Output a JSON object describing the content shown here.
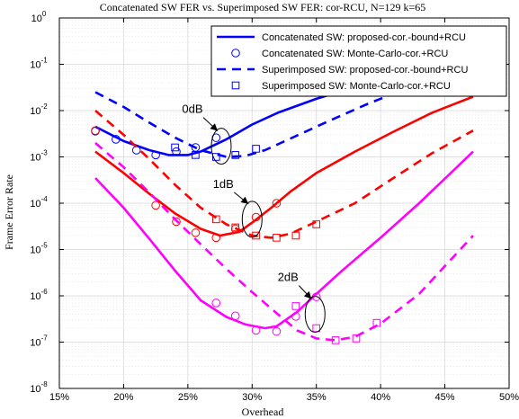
{
  "chart_data": {
    "type": "line",
    "title": "Concatenated SW FER vs. Superimposed SW FER: cor-RCU, N=129 k=65",
    "xlabel": "Overhead",
    "ylabel": "Frame Error Rate",
    "xlim": [
      15,
      50
    ],
    "ylim": [
      1e-08,
      1
    ],
    "yscale": "log",
    "grid": true,
    "x_ticks": [
      15,
      20,
      25,
      30,
      35,
      40,
      45,
      50
    ],
    "x_tick_labels": [
      "15%",
      "20%",
      "25%",
      "30%",
      "35%",
      "40%",
      "45%",
      "50%"
    ],
    "y_ticks": [
      1e-08,
      1e-07,
      1e-06,
      1e-05,
      0.0001,
      0.001,
      0.01,
      0.1,
      1
    ],
    "y_tick_labels": [
      {
        "base": "10",
        "exp": "-8"
      },
      {
        "base": "10",
        "exp": "-7"
      },
      {
        "base": "10",
        "exp": "-6"
      },
      {
        "base": "10",
        "exp": "-5"
      },
      {
        "base": "10",
        "exp": "-4"
      },
      {
        "base": "10",
        "exp": "-3"
      },
      {
        "base": "10",
        "exp": "-2"
      },
      {
        "base": "10",
        "exp": "-1"
      },
      {
        "base": "10",
        "exp": "0"
      }
    ],
    "legend_position": "top-right",
    "legend": [
      {
        "label": "Concatenated SW: proposed-cor.-bound+RCU",
        "style": "solid",
        "marker": "none",
        "color": "#0000ff"
      },
      {
        "label": "Concatenated SW: Monte-Carlo-cor.+RCU",
        "style": "none",
        "marker": "circle",
        "color": "#0000ff"
      },
      {
        "label": "Superimposed SW: proposed-cor.-bound+RCU",
        "style": "dashed",
        "marker": "none",
        "color": "#0000ff"
      },
      {
        "label": "Superimposed SW: Monte-Carlo-cor.+RCU",
        "style": "none",
        "marker": "square",
        "color": "#0000ff"
      }
    ],
    "series": [
      {
        "snr": "0dB",
        "kind": "concat-bound",
        "color": "#0000ff",
        "style": "solid",
        "marker": "none",
        "x": [
          17.8,
          20,
          22,
          23.5,
          25,
          26,
          28,
          30,
          32,
          35,
          38,
          41,
          44,
          47.2
        ],
        "y": [
          0.0045,
          0.0022,
          0.0014,
          0.0011,
          0.0011,
          0.0013,
          0.0024,
          0.005,
          0.009,
          0.018,
          0.032,
          0.05,
          0.075,
          0.1
        ]
      },
      {
        "snr": "0dB",
        "kind": "concat-mc",
        "color": "#0000ff",
        "style": "none",
        "marker": "circle",
        "x": [
          17.8,
          19.4,
          21,
          22.5,
          24.1,
          25.6,
          27.2
        ],
        "y": [
          0.0036,
          0.0024,
          0.0014,
          0.0011,
          0.0013,
          0.0016,
          0.0026
        ]
      },
      {
        "snr": "0dB",
        "kind": "super-bound",
        "color": "#0000ff",
        "style": "dashed",
        "marker": "none",
        "x": [
          17.8,
          20,
          22,
          24,
          26,
          28,
          29.5,
          31,
          33,
          36,
          39,
          42,
          45,
          47.2
        ],
        "y": [
          0.025,
          0.012,
          0.0055,
          0.0026,
          0.0014,
          0.001,
          0.00105,
          0.0014,
          0.0025,
          0.006,
          0.014,
          0.03,
          0.055,
          0.08
        ]
      },
      {
        "snr": "0dB",
        "kind": "super-mc",
        "color": "#0000ff",
        "style": "none",
        "marker": "square",
        "x": [
          24,
          25.6,
          27.2,
          28.7,
          30.3
        ],
        "y": [
          0.0016,
          0.0011,
          0.001,
          0.0011,
          0.0015
        ]
      },
      {
        "snr": "1dB",
        "kind": "concat-bound",
        "color": "#ff0000",
        "style": "solid",
        "marker": "none",
        "x": [
          17.8,
          20,
          22,
          24,
          26,
          27.5,
          29,
          30,
          31.5,
          33,
          35,
          38,
          41,
          44,
          47.2
        ],
        "y": [
          0.0013,
          0.00045,
          0.00016,
          6e-05,
          2.8e-05,
          2e-05,
          2.4e-05,
          3.8e-05,
          8e-05,
          0.00018,
          0.00045,
          0.0013,
          0.0035,
          0.009,
          0.02
        ]
      },
      {
        "snr": "1dB",
        "kind": "concat-mc",
        "color": "#ff0000",
        "style": "none",
        "marker": "circle",
        "x": [
          17.8,
          22.5,
          24.1,
          25.6,
          27.2,
          28.7,
          30.3,
          31.9
        ],
        "y": [
          0.0037,
          9e-05,
          4e-05,
          2.3e-05,
          1.8e-05,
          2.8e-05,
          5e-05,
          0.0001
        ]
      },
      {
        "snr": "1dB",
        "kind": "super-bound",
        "color": "#ff0000",
        "style": "dashed",
        "marker": "none",
        "x": [
          17.8,
          20,
          22,
          24,
          26,
          28,
          30,
          31.5,
          33,
          35,
          38,
          41,
          44,
          47.2
        ],
        "y": [
          0.01,
          0.003,
          0.0009,
          0.00025,
          8e-05,
          3.5e-05,
          2e-05,
          1.8e-05,
          2.2e-05,
          4e-05,
          0.0001,
          0.00035,
          0.0012,
          0.0037
        ]
      },
      {
        "snr": "1dB",
        "kind": "super-mc",
        "color": "#ff0000",
        "style": "none",
        "marker": "square",
        "x": [
          27.2,
          28.7,
          30.3,
          31.9,
          33.4,
          35
        ],
        "y": [
          4.5e-05,
          3e-05,
          2e-05,
          1.8e-05,
          2e-05,
          3.5e-05
        ]
      },
      {
        "snr": "2dB",
        "kind": "concat-bound",
        "color": "#ff00ff",
        "style": "solid",
        "marker": "none",
        "x": [
          17.8,
          20,
          22,
          24,
          26,
          28,
          29.5,
          31,
          31.9,
          33.5,
          35,
          37,
          40,
          43,
          47.2
        ],
        "y": [
          0.00035,
          8e-05,
          1.7e-05,
          3.5e-06,
          8e-07,
          3.5e-07,
          2.4e-07,
          2e-07,
          2.2e-07,
          4.5e-07,
          1.1e-06,
          3.5e-06,
          1.8e-05,
          0.0001,
          0.0013
        ]
      },
      {
        "snr": "2dB",
        "kind": "concat-mc",
        "color": "#ff00ff",
        "style": "none",
        "marker": "circle",
        "x": [
          27.2,
          28.7,
          30.3,
          31.9,
          33.4,
          35
        ],
        "y": [
          7e-07,
          3.7e-07,
          1.8e-07,
          1.7e-07,
          3.6e-07,
          9.5e-07
        ]
      },
      {
        "snr": "2dB",
        "kind": "super-bound",
        "color": "#ff00ff",
        "style": "dashed",
        "marker": "none",
        "x": [
          17.8,
          20,
          22,
          24,
          26,
          28,
          30,
          32,
          33.5,
          35,
          36.5,
          38,
          40,
          43,
          47.2
        ],
        "y": [
          0.002,
          0.0006,
          0.00017,
          4.5e-05,
          1.3e-05,
          3.8e-06,
          1.2e-06,
          4e-07,
          1.8e-07,
          1.2e-07,
          1.1e-07,
          1.3e-07,
          2.5e-07,
          1.1e-06,
          2e-05
        ]
      },
      {
        "snr": "2dB",
        "kind": "super-mc",
        "color": "#ff00ff",
        "style": "none",
        "marker": "square",
        "x": [
          33.4,
          35,
          36.5,
          38.1,
          39.7
        ],
        "y": [
          6e-07,
          2e-07,
          1.1e-07,
          1.2e-07,
          2.6e-07
        ]
      }
    ],
    "annotations": [
      {
        "text": "0dB",
        "target_x": 27.6,
        "target_y": 0.0017
      },
      {
        "text": "1dB",
        "target_x": 30.0,
        "target_y": 4.5e-05
      },
      {
        "text": "2dB",
        "target_x": 34.9,
        "target_y": 4e-07
      }
    ]
  }
}
